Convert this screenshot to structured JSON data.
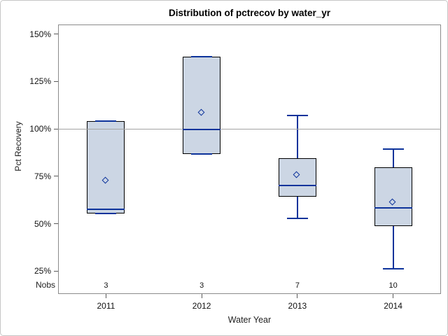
{
  "figure": {
    "title": "Distribution of pctrecov by water_yr",
    "y_axis_label": "Pct Recovery",
    "x_axis_label": "Water Year",
    "nobs_row_label": "Nobs"
  },
  "colors": {
    "box_fill": "#ccd6e4",
    "box_border": "#000000",
    "box_line": "#0d339b",
    "reference_line": "#a3a3a3",
    "axis_border": "#8b8b8b",
    "tick": "#5a5a5a",
    "text": "#111111"
  },
  "chart_data": {
    "type": "boxplot",
    "title": "Distribution of pctrecov by water_yr",
    "xlabel": "Water Year",
    "ylabel": "Pct Recovery",
    "ylim": [
      13,
      155
    ],
    "grid": "off",
    "legend": "none",
    "reference_line_y": 100,
    "y_ticks": [
      {
        "value": 150,
        "label": "150%"
      },
      {
        "value": 125,
        "label": "125%"
      },
      {
        "value": 100,
        "label": "100%"
      },
      {
        "value": 75,
        "label": "75%"
      },
      {
        "value": 50,
        "label": "50%"
      },
      {
        "value": 25,
        "label": "25%"
      }
    ],
    "categories": [
      "2011",
      "2012",
      "2013",
      "2014"
    ],
    "nobs_label": "Nobs",
    "series": [
      {
        "category": "2011",
        "nobs": "3",
        "whisker_low": 55.4,
        "q1": 55.4,
        "median": 57.6,
        "q3": 104.1,
        "whisker_high": 104.1,
        "mean": 72.7
      },
      {
        "category": "2012",
        "nobs": "3",
        "whisker_low": 86.6,
        "q1": 86.6,
        "median": 99.8,
        "q3": 138.2,
        "whisker_high": 138.2,
        "mean": 108.5
      },
      {
        "category": "2013",
        "nobs": "7",
        "whisker_low": 52.8,
        "q1": 64.3,
        "median": 70.2,
        "q3": 84.6,
        "whisker_high": 107.0,
        "mean": 75.4
      },
      {
        "category": "2014",
        "nobs": "10",
        "whisker_low": 26.3,
        "q1": 48.8,
        "median": 58.4,
        "q3": 79.8,
        "whisker_high": 89.4,
        "mean": 61.3
      }
    ]
  }
}
